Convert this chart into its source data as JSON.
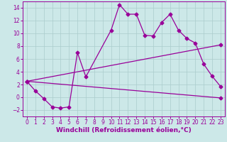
{
  "title": "",
  "xlabel": "Windchill (Refroidissement éolien,°C)",
  "background_color": "#cce8e8",
  "grid_color": "#aacccc",
  "line_color": "#990099",
  "xlim": [
    -0.5,
    23.5
  ],
  "ylim": [
    -3,
    15
  ],
  "xticks": [
    0,
    1,
    2,
    3,
    4,
    5,
    6,
    7,
    8,
    9,
    10,
    11,
    12,
    13,
    14,
    15,
    16,
    17,
    18,
    19,
    20,
    21,
    22,
    23
  ],
  "yticks": [
    -2,
    0,
    2,
    4,
    6,
    8,
    10,
    12,
    14
  ],
  "line1_x": [
    0,
    1,
    2,
    3,
    4,
    5,
    6,
    7,
    10,
    11,
    12,
    13,
    14,
    15,
    16,
    17,
    18,
    19,
    20,
    21,
    22,
    23
  ],
  "line1_y": [
    2.5,
    1.0,
    -0.2,
    -1.5,
    -1.7,
    -1.5,
    7.0,
    3.2,
    10.5,
    14.5,
    13.0,
    13.0,
    9.7,
    9.6,
    11.7,
    13.0,
    10.5,
    9.2,
    8.5,
    5.2,
    3.3,
    1.7
  ],
  "line2_x": [
    0,
    23
  ],
  "line2_y": [
    2.5,
    -0.1
  ],
  "line3_x": [
    0,
    23
  ],
  "line3_y": [
    2.5,
    8.2
  ],
  "marker_size": 2.5,
  "linewidth": 0.9,
  "xlabel_fontsize": 6.5,
  "tick_fontsize": 5.5
}
